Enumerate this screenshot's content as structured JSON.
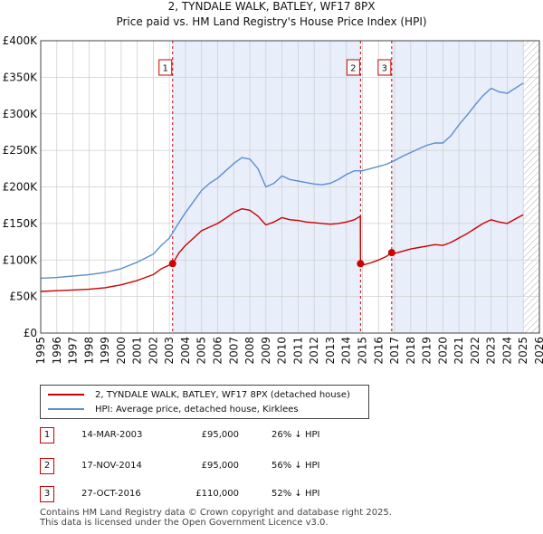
{
  "chart_data": {
    "type": "line",
    "title": "2, TYNDALE WALK, BATLEY, WF17 8PX",
    "subtitle": "Price paid vs. HM Land Registry's House Price Index (HPI)",
    "xlabel": "",
    "ylabel": "",
    "xlim": [
      1995,
      2026
    ],
    "ylim": [
      0,
      400000
    ],
    "x_ticks": [
      1995,
      1996,
      1997,
      1998,
      1999,
      2000,
      2001,
      2002,
      2003,
      2004,
      2005,
      2006,
      2007,
      2008,
      2009,
      2010,
      2011,
      2012,
      2013,
      2014,
      2015,
      2016,
      2017,
      2018,
      2019,
      2020,
      2021,
      2022,
      2023,
      2024,
      2025,
      2026
    ],
    "y_ticks": [
      0,
      50000,
      100000,
      150000,
      200000,
      250000,
      300000,
      350000,
      400000
    ],
    "y_tick_labels": [
      "£0",
      "£50K",
      "£100K",
      "£150K",
      "£200K",
      "£250K",
      "£300K",
      "£350K",
      "£400K"
    ],
    "shaded_periods": [
      [
        2003.2,
        2014.88
      ],
      [
        2016.82,
        2025.0
      ]
    ],
    "hatched_period": [
      2025.0,
      2026
    ],
    "series": [
      {
        "name": "2, TYNDALE WALK, BATLEY, WF17 8PX (detached house)",
        "color": "#cc0000",
        "x": [
          1995,
          1996,
          1997,
          1998,
          1999,
          2000,
          2001,
          2002,
          2002.5,
          2003.2,
          2003.6,
          2004,
          2004.5,
          2005,
          2005.5,
          2006,
          2006.5,
          2007,
          2007.5,
          2008,
          2008.5,
          2009,
          2009.5,
          2010,
          2010.5,
          2011,
          2011.5,
          2012,
          2012.5,
          2013,
          2013.5,
          2014,
          2014.5,
          2014.87,
          2014.88,
          2015,
          2015.5,
          2016,
          2016.5,
          2016.82,
          2017,
          2017.5,
          2018,
          2018.5,
          2019,
          2019.5,
          2020,
          2020.5,
          2021,
          2021.5,
          2022,
          2022.5,
          2023,
          2023.5,
          2024,
          2024.5,
          2025
        ],
        "y": [
          57000,
          58000,
          59000,
          60000,
          62000,
          66000,
          72000,
          80000,
          88000,
          95000,
          110000,
          120000,
          130000,
          140000,
          145000,
          150000,
          157000,
          165000,
          170000,
          168000,
          160000,
          148000,
          152000,
          158000,
          155000,
          154000,
          152000,
          151000,
          150000,
          149000,
          150000,
          152000,
          155000,
          160000,
          95000,
          93000,
          96000,
          100000,
          105000,
          110000,
          109000,
          112000,
          115000,
          117000,
          119000,
          121000,
          120000,
          124000,
          130000,
          136000,
          143000,
          150000,
          155000,
          152000,
          150000,
          156000,
          162000
        ]
      },
      {
        "name": "HPI: Average price, detached house, Kirklees",
        "color": "#5b8fd1",
        "x": [
          1995,
          1996,
          1997,
          1998,
          1999,
          2000,
          2001,
          2002,
          2002.5,
          2003,
          2003.5,
          2004,
          2004.5,
          2005,
          2005.5,
          2006,
          2006.5,
          2007,
          2007.5,
          2008,
          2008.5,
          2009,
          2009.5,
          2010,
          2010.5,
          2011,
          2011.5,
          2012,
          2012.5,
          2013,
          2013.5,
          2014,
          2014.5,
          2015,
          2015.5,
          2016,
          2016.5,
          2017,
          2017.5,
          2018,
          2018.5,
          2019,
          2019.5,
          2020,
          2020.5,
          2021,
          2021.5,
          2022,
          2022.5,
          2023,
          2023.5,
          2024,
          2024.5,
          2025
        ],
        "y": [
          75000,
          76000,
          78000,
          80000,
          83000,
          88000,
          97000,
          108000,
          120000,
          130000,
          148000,
          165000,
          180000,
          195000,
          205000,
          212000,
          222000,
          232000,
          240000,
          238000,
          225000,
          200000,
          205000,
          215000,
          210000,
          208000,
          206000,
          204000,
          203000,
          205000,
          210000,
          217000,
          222000,
          222000,
          225000,
          228000,
          231000,
          236000,
          242000,
          247000,
          252000,
          257000,
          260000,
          260000,
          270000,
          285000,
          298000,
          312000,
          325000,
          335000,
          330000,
          328000,
          335000,
          342000
        ]
      }
    ],
    "sale_points": [
      {
        "label": "1",
        "x": 2003.2,
        "y": 95000
      },
      {
        "label": "2",
        "x": 2014.88,
        "y": 95000
      },
      {
        "label": "3",
        "x": 2016.82,
        "y": 110000
      }
    ]
  },
  "legend": {
    "property_label": "2, TYNDALE WALK, BATLEY, WF17 8PX (detached house)",
    "hpi_label": "HPI: Average price, detached house, Kirklees"
  },
  "sales": [
    {
      "num": "1",
      "date": "14-MAR-2003",
      "price": "£95,000",
      "delta": "26% ↓ HPI"
    },
    {
      "num": "2",
      "date": "17-NOV-2014",
      "price": "£95,000",
      "delta": "56% ↓ HPI"
    },
    {
      "num": "3",
      "date": "27-OCT-2016",
      "price": "£110,000",
      "delta": "52% ↓ HPI"
    }
  ],
  "footer": {
    "line1": "Contains HM Land Registry data © Crown copyright and database right 2025.",
    "line2": "This data is licensed under the Open Government Licence v3.0."
  },
  "colors": {
    "property": "#cc0000",
    "hpi": "#5b8fd1",
    "shade": "#e8eefa",
    "grid": "#d0d0d0",
    "badge_border": "#cc0000"
  }
}
